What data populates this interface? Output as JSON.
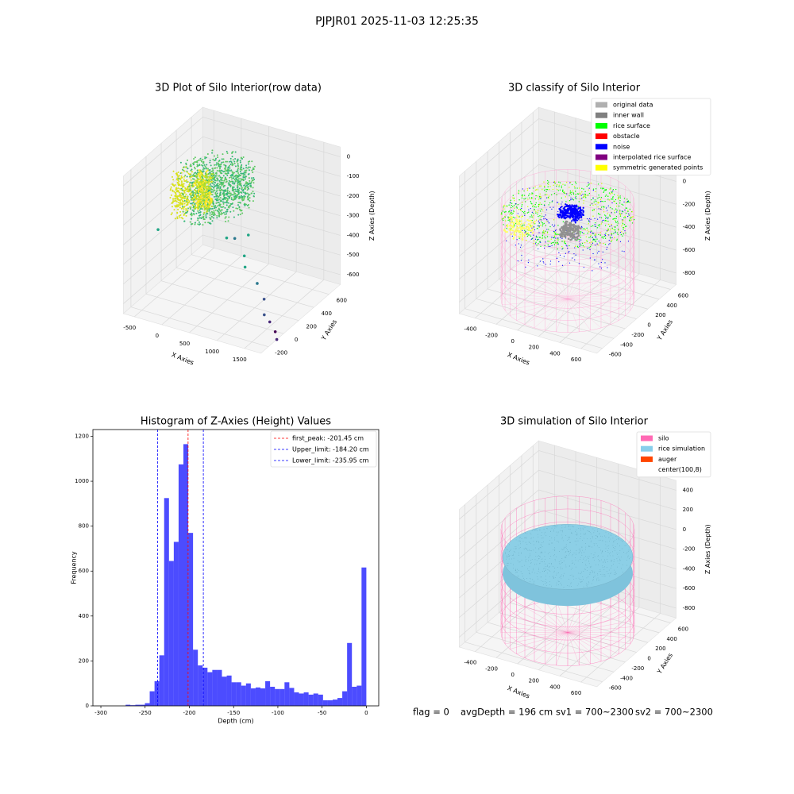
{
  "title": "PJPJR01 2025-11-03 12:25:35",
  "chart_data": [
    {
      "type": "scatter3d",
      "title": "3D Plot of Silo Interior(row data)",
      "xlabel": "X Axies",
      "ylabel": "Y Axies",
      "zlabel": "Z Axies (Depth)",
      "xlim": [
        -700,
        1800
      ],
      "ylim": [
        -300,
        750
      ],
      "zlim": [
        -650,
        50
      ],
      "xticks": [
        -500,
        0,
        500,
        1000,
        1500
      ],
      "yticks": [
        -200,
        0,
        200,
        400,
        600
      ],
      "zticks": [
        -600,
        -500,
        -400,
        -300,
        -200,
        -100,
        0
      ]
    },
    {
      "type": "scatter3d",
      "title": "3D classify of Silo Interior",
      "xlabel": "X Axies",
      "ylabel": "Y Axies",
      "zlabel": "Z Axies (Depth)",
      "xlim": [
        -550,
        750
      ],
      "ylim": [
        -700,
        700
      ],
      "zlim": [
        -900,
        300
      ],
      "xticks": [
        -400,
        -200,
        0,
        200,
        400,
        600
      ],
      "yticks": [
        -600,
        -400,
        -200,
        0,
        200,
        400,
        600
      ],
      "zticks": [
        -800,
        -600,
        -400,
        -200,
        0,
        200
      ],
      "legend": "upper right",
      "series": [
        {
          "name": "original data",
          "color": "#b0b0b0"
        },
        {
          "name": "inner wall",
          "color": "#808080"
        },
        {
          "name": "rice surface",
          "color": "#00ff00"
        },
        {
          "name": "obstacle",
          "color": "#ff0000"
        },
        {
          "name": "noise",
          "color": "#0000ff"
        },
        {
          "name": "interpolated rice surface",
          "color": "#800080"
        },
        {
          "name": "symmetric generated points",
          "color": "#ffff00"
        }
      ]
    },
    {
      "type": "histogram",
      "title": "Histogram of Z-Axies (Height) Values",
      "xlabel": "Depth (cm)",
      "ylabel": "Frequency",
      "color": "#0000ff",
      "xlim": [
        -309,
        14
      ],
      "ylim": [
        0,
        1230
      ],
      "xticks": [
        -300,
        -250,
        -200,
        -150,
        -100,
        -50,
        0
      ],
      "yticks": [
        0,
        200,
        400,
        600,
        800,
        1000,
        1200
      ],
      "bins": [
        -272,
        -266.56,
        -261.12,
        -255.68,
        -250.24,
        -244.8,
        -239.36,
        -233.92,
        -228.48,
        -223.04,
        -217.6,
        -212.16,
        -206.72,
        -201.28,
        -195.84,
        -190.4,
        -184.96,
        -179.52,
        -174.08,
        -168.64,
        -163.2,
        -157.76,
        -152.32,
        -146.88,
        -141.44,
        -136,
        -130.56,
        -125.12,
        -119.68,
        -114.24,
        -108.8,
        -103.36,
        -97.92,
        -92.48,
        -87.04,
        -81.6,
        -76.16,
        -70.72,
        -65.28,
        -59.84,
        -54.4,
        -48.96,
        -43.52,
        -38.08,
        -32.64,
        -27.2,
        -21.76,
        -16.32,
        -10.88,
        -5.44,
        0
      ],
      "values": [
        5,
        3,
        5,
        5,
        12,
        65,
        110,
        225,
        925,
        645,
        730,
        1075,
        1165,
        770,
        250,
        180,
        170,
        150,
        160,
        160,
        130,
        135,
        105,
        105,
        90,
        100,
        78,
        82,
        78,
        110,
        85,
        75,
        75,
        105,
        80,
        60,
        55,
        60,
        50,
        55,
        50,
        25,
        25,
        28,
        35,
        65,
        280,
        85,
        90,
        616
      ],
      "legend": "upper right",
      "vlines": [
        {
          "name": "first_peak: -201.45 cm",
          "value": -201.45,
          "color": "#ff0000"
        },
        {
          "name": "Upper_limit: -184.20 cm",
          "value": -184.2,
          "color": "#0000ff"
        },
        {
          "name": "Lower_limit: -235.95 cm",
          "value": -235.95,
          "color": "#0000ff"
        }
      ]
    },
    {
      "type": "surface3d",
      "title": "3D simulation of Silo Interior",
      "xlabel": "X Axies",
      "ylabel": "Y Axies",
      "zlabel": "Z Axies (Depth)",
      "xlim": [
        -550,
        750
      ],
      "ylim": [
        -700,
        700
      ],
      "zlim": [
        -900,
        500
      ],
      "xticks": [
        -400,
        -200,
        0,
        200,
        400,
        600
      ],
      "yticks": [
        -600,
        -400,
        -200,
        0,
        200,
        400,
        600
      ],
      "zticks": [
        -800,
        -600,
        -400,
        -200,
        0,
        200,
        400
      ],
      "legend": "upper right",
      "series": [
        {
          "name": "silo",
          "color": "#ff69b4"
        },
        {
          "name": "rice simulation",
          "color": "#87ceeb"
        },
        {
          "name": "auger",
          "color": "#ff4500"
        },
        {
          "name": "center(100,8)",
          "color": "#ffffff"
        }
      ]
    }
  ],
  "status": [
    "flag = 0",
    "avgDepth = 196 cm",
    "sv1 = 700~2300",
    "sv2 = 700~2300"
  ]
}
